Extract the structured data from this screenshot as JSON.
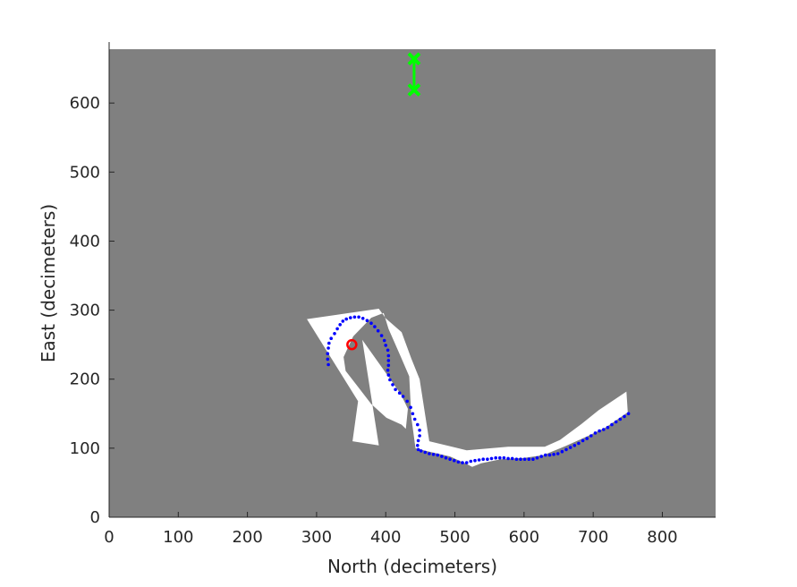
{
  "chart_data": {
    "type": "scatter",
    "title": "",
    "xlabel": "North (decimeters)",
    "ylabel": "East (decimeters)",
    "xlim": [
      0,
      877
    ],
    "ylim": [
      0,
      678
    ],
    "xticks": [
      0,
      100,
      200,
      300,
      400,
      500,
      600,
      700,
      800
    ],
    "yticks": [
      0,
      100,
      200,
      300,
      400,
      500,
      600
    ],
    "grid": false,
    "background_color": "#808080",
    "free_space_color": "#ffffff",
    "free_space_regions": [
      [
        [
          286,
          287
        ],
        [
          390,
          302
        ],
        [
          400,
          288
        ],
        [
          423,
          268
        ],
        [
          437,
          230
        ],
        [
          449,
          200
        ],
        [
          463,
          110
        ],
        [
          517,
          97
        ],
        [
          577,
          102
        ],
        [
          630,
          102
        ],
        [
          652,
          112
        ],
        [
          683,
          135
        ],
        [
          708,
          155
        ],
        [
          748,
          182
        ],
        [
          750,
          152
        ],
        [
          718,
          130
        ],
        [
          693,
          118
        ],
        [
          660,
          103
        ],
        [
          628,
          90
        ],
        [
          600,
          86
        ],
        [
          566,
          84
        ],
        [
          538,
          78
        ],
        [
          525,
          73
        ],
        [
          515,
          78
        ],
        [
          493,
          88
        ],
        [
          458,
          96
        ],
        [
          443,
          100
        ],
        [
          437,
          145
        ],
        [
          434,
          204
        ],
        [
          422,
          232
        ],
        [
          404,
          273
        ],
        [
          397,
          296
        ],
        [
          379,
          289
        ],
        [
          353,
          262
        ],
        [
          339,
          232
        ],
        [
          342,
          212
        ],
        [
          359,
          190
        ],
        [
          379,
          164
        ],
        [
          401,
          144
        ],
        [
          423,
          134
        ],
        [
          429,
          128
        ],
        [
          432,
          157
        ],
        [
          422,
          178
        ],
        [
          398,
          212
        ],
        [
          366,
          257
        ],
        [
          390,
          104
        ],
        [
          352,
          110
        ],
        [
          360,
          168
        ]
      ]
    ],
    "series": [
      {
        "color": "#0000ff",
        "marker": "dot",
        "x": [
          751,
          745,
          739,
          733,
          727,
          721,
          715,
          709,
          703,
          697,
          691,
          685,
          679,
          673,
          667,
          661,
          655,
          649,
          643,
          637,
          631,
          625,
          619,
          613,
          607,
          601,
          595,
          589,
          583,
          577,
          571,
          565,
          559,
          553,
          547,
          541,
          535,
          529,
          523,
          517,
          511,
          505,
          499,
          493,
          487,
          481,
          475,
          469,
          463,
          457,
          451,
          447,
          446,
          447,
          449,
          449,
          446,
          442,
          439,
          436,
          431,
          425,
          420,
          414,
          410,
          406,
          404,
          403,
          404,
          404,
          404,
          403,
          400,
          398,
          394,
          389,
          384,
          379,
          373,
          367,
          361,
          355,
          349,
          343,
          338,
          334,
          330,
          326,
          321,
          318,
          317,
          316,
          316,
          317
        ],
        "y": [
          150,
          146,
          142,
          138,
          134,
          130,
          127,
          125,
          122,
          118,
          114,
          111,
          107,
          104,
          101,
          98,
          95,
          92,
          91,
          90,
          90,
          88,
          86,
          84,
          84,
          84,
          84,
          84,
          85,
          85,
          86,
          86,
          86,
          85,
          84,
          84,
          83,
          82,
          81,
          79,
          79,
          80,
          82,
          84,
          86,
          88,
          90,
          91,
          92,
          94,
          96,
          98,
          104,
          111,
          118,
          126,
          134,
          142,
          150,
          159,
          168,
          175,
          180,
          185,
          192,
          199,
          206,
          213,
          220,
          227,
          234,
          242,
          249,
          256,
          263,
          270,
          276,
          281,
          285,
          288,
          290,
          290,
          289,
          287,
          284,
          279,
          273,
          266,
          259,
          252,
          245,
          237,
          229,
          221
        ]
      }
    ],
    "start_marker": {
      "x": 351,
      "y": 250,
      "color": "#ff0000",
      "marker": "circle"
    },
    "goal_markers": {
      "x": [
        441,
        441
      ],
      "y": [
        664,
        619
      ],
      "color": "#00ff00",
      "marker": "x",
      "connected": true
    }
  }
}
